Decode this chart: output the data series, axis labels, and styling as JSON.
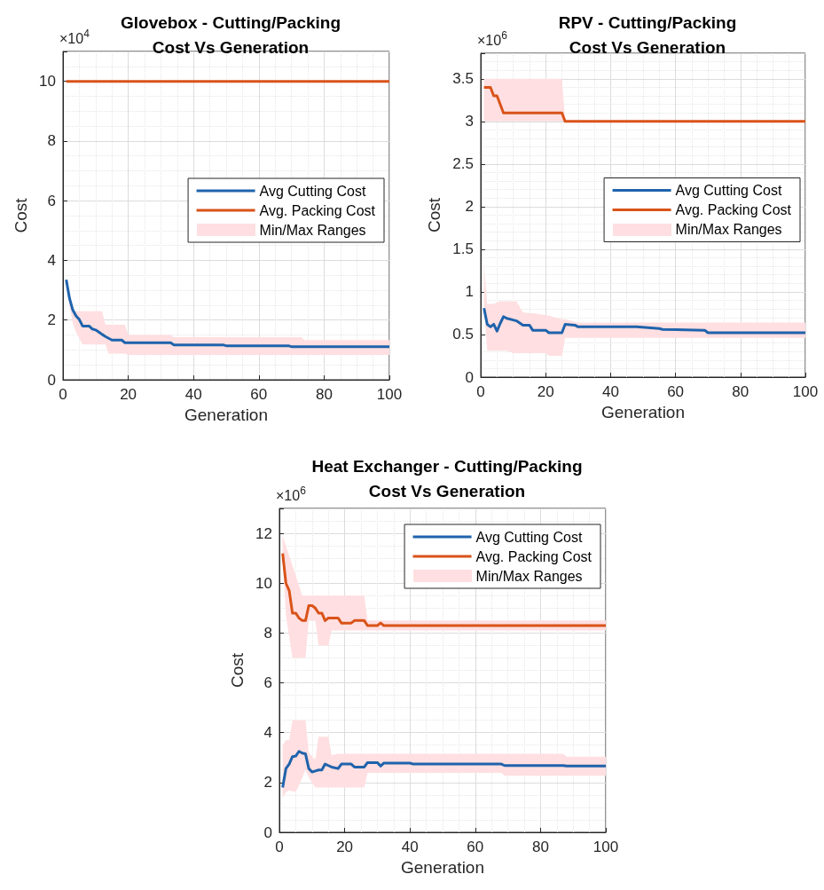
{
  "chart_data": [
    {
      "type": "line",
      "title": "Glovebox - Cutting/Packing\nCost Vs Generation",
      "xlabel": "Generation",
      "ylabel": "Cost",
      "annotations": [
        "×10$^{4}$",
        "Min/Max Ranges"
      ],
      "xlim": [
        0,
        100
      ],
      "xticks": [
        0,
        20,
        40,
        60,
        80,
        100
      ],
      "ylim": [
        0,
        11
      ],
      "yticks": [
        0,
        2,
        4,
        6,
        8,
        10
      ],
      "grid": true,
      "legend": "right",
      "series": [
        {
          "name": "Avg Cutting Cost",
          "color": "#1f63ac",
          "x": [
            1,
            2,
            3,
            4,
            5,
            6,
            8,
            9,
            10,
            11,
            12,
            13,
            14,
            15,
            18,
            19,
            20,
            33,
            34,
            49,
            50,
            69,
            70,
            73,
            74,
            100
          ],
          "values": [
            3.35,
            2.73,
            2.34,
            2.14,
            2.02,
            1.8,
            1.8,
            1.7,
            1.67,
            1.6,
            1.52,
            1.45,
            1.39,
            1.33,
            1.33,
            1.24,
            1.24,
            1.24,
            1.17,
            1.17,
            1.14,
            1.14,
            1.11,
            1.11,
            1.11,
            1.11
          ],
          "upper": [
            3.4,
            2.88,
            2.3,
            2.3,
            2.3,
            2.3,
            2.3,
            2.3,
            2.3,
            2.3,
            2.3,
            1.84,
            1.84,
            1.84,
            1.84,
            1.84,
            1.5,
            1.5,
            1.43,
            1.43,
            1.43,
            1.43,
            1.43,
            1.43,
            1.33,
            1.33
          ],
          "lower": [
            3.3,
            2.5,
            1.9,
            1.6,
            1.39,
            1.18,
            1.18,
            1.18,
            1.18,
            1.18,
            1.18,
            1.18,
            0.88,
            0.88,
            0.88,
            0.88,
            0.83,
            0.83,
            0.83,
            0.83,
            0.83,
            0.83,
            0.83,
            0.83,
            0.83,
            0.83
          ]
        },
        {
          "name": "Avg. Packing Cost",
          "color": "#d95319",
          "x": [
            1,
            100
          ],
          "values": [
            10,
            10
          ]
        }
      ]
    },
    {
      "type": "line",
      "title": "RPV - Cutting/Packing\nCost Vs Generation",
      "xlabel": "Generation",
      "ylabel": "Cost",
      "annotations": [
        "×10$^{6}$",
        "Min/Max Ranges"
      ],
      "xlim": [
        0,
        100
      ],
      "xticks": [
        0,
        20,
        40,
        60,
        80,
        100
      ],
      "ylim": [
        0,
        3.8
      ],
      "yticks": [
        0,
        0.5,
        1,
        1.5,
        2,
        2.5,
        3,
        3.5
      ],
      "grid": true,
      "legend": "right",
      "series": [
        {
          "name": "Avg Cutting Cost",
          "color": "#1f63ac",
          "x": [
            1,
            2,
            3,
            4,
            5,
            6,
            7,
            8,
            10,
            11,
            13,
            15,
            16,
            20,
            21,
            25,
            26,
            29,
            30,
            48,
            55,
            56,
            69,
            70,
            100
          ],
          "values": [
            0.81,
            0.62,
            0.59,
            0.62,
            0.54,
            0.63,
            0.71,
            0.69,
            0.67,
            0.66,
            0.61,
            0.61,
            0.55,
            0.55,
            0.52,
            0.52,
            0.62,
            0.61,
            0.59,
            0.59,
            0.57,
            0.56,
            0.55,
            0.52,
            0.52
          ],
          "upper": [
            1.32,
            0.86,
            0.86,
            0.86,
            0.88,
            0.89,
            0.89,
            0.89,
            0.89,
            0.89,
            0.76,
            0.75,
            0.75,
            0.73,
            0.72,
            0.68,
            0.68,
            0.65,
            0.64,
            0.64,
            0.64,
            0.64,
            0.64,
            0.64,
            0.64
          ],
          "lower": [
            0.8,
            0.31,
            0.31,
            0.31,
            0.31,
            0.31,
            0.31,
            0.31,
            0.28,
            0.28,
            0.28,
            0.28,
            0.28,
            0.28,
            0.25,
            0.25,
            0.46,
            0.46,
            0.46,
            0.46,
            0.46,
            0.46,
            0.46,
            0.46,
            0.46
          ]
        },
        {
          "name": "Avg. Packing Cost",
          "color": "#d95319",
          "x": [
            1,
            3,
            4,
            5,
            7,
            25,
            26,
            100
          ],
          "values": [
            3.4,
            3.4,
            3.3,
            3.3,
            3.1,
            3.1,
            3.0,
            3.0
          ],
          "upper": [
            3.5,
            3.5,
            3.5,
            3.5,
            3.5,
            3.5,
            3.0,
            3.0
          ],
          "lower": [
            3.0,
            3.0,
            3.0,
            3.0,
            3.0,
            3.0,
            3.0,
            3.0
          ]
        }
      ]
    },
    {
      "type": "line",
      "title": "Heat Exchanger - Cutting/Packing\nCost Vs Generation",
      "xlabel": "Generation",
      "ylabel": "Cost",
      "annotations": [
        "×10$^{6}$",
        "Min/Max Ranges"
      ],
      "xlim": [
        0,
        100
      ],
      "xticks": [
        0,
        20,
        40,
        60,
        80,
        100
      ],
      "ylim": [
        0,
        13
      ],
      "yticks": [
        0,
        2,
        4,
        6,
        8,
        10,
        12
      ],
      "grid": true,
      "legend": "top right",
      "series": [
        {
          "name": "Avg Cutting Cost",
          "color": "#1f63ac",
          "x": [
            1,
            2,
            3,
            4,
            5,
            6,
            7,
            8,
            9,
            10,
            11,
            12,
            13,
            14,
            15,
            16,
            18,
            19,
            22,
            23,
            26,
            27,
            30,
            31,
            32,
            40,
            41,
            68,
            69,
            87,
            88,
            100
          ],
          "values": [
            1.8,
            2.56,
            2.74,
            3.04,
            3.06,
            3.25,
            3.18,
            3.15,
            2.56,
            2.42,
            2.46,
            2.5,
            2.5,
            2.74,
            2.68,
            2.62,
            2.56,
            2.74,
            2.74,
            2.62,
            2.62,
            2.8,
            2.8,
            2.66,
            2.78,
            2.78,
            2.74,
            2.74,
            2.68,
            2.68,
            2.66,
            2.66
          ],
          "upper": [
            3.5,
            3.7,
            3.7,
            4.5,
            4.5,
            4.5,
            4.5,
            4.5,
            3.2,
            3.05,
            2.9,
            3.84,
            3.84,
            3.84,
            3.84,
            3.1,
            3.15,
            3.15,
            3.15,
            3.15,
            3.15,
            3.15,
            3.15,
            3.15,
            3.15,
            3.15,
            3.15,
            3.15,
            3.15,
            3.15,
            3.04,
            3.04
          ],
          "lower": [
            1.39,
            1.6,
            1.68,
            1.65,
            1.62,
            1.9,
            2.2,
            2.5,
            2.2,
            2.0,
            1.8,
            1.8,
            1.8,
            1.8,
            1.8,
            1.8,
            1.8,
            1.8,
            1.8,
            1.8,
            1.8,
            2.39,
            2.39,
            2.39,
            2.39,
            2.39,
            2.39,
            2.39,
            2.27,
            2.27,
            2.27,
            2.27
          ]
        },
        {
          "name": "Avg. Packing Cost",
          "color": "#d95319",
          "x": [
            1,
            2,
            3,
            4,
            5,
            6,
            7,
            8,
            9,
            10,
            11,
            12,
            13,
            14,
            15,
            16,
            18,
            19,
            22,
            23,
            26,
            27,
            30,
            31,
            32,
            100
          ],
          "values": [
            11.2,
            10.0,
            9.7,
            8.8,
            8.8,
            8.6,
            8.5,
            8.5,
            9.1,
            9.1,
            9.0,
            8.8,
            8.8,
            8.5,
            8.6,
            8.6,
            8.6,
            8.4,
            8.4,
            8.5,
            8.5,
            8.3,
            8.3,
            8.4,
            8.3,
            8.3
          ],
          "upper": [
            11.9,
            11.5,
            11.1,
            10.7,
            10.3,
            9.9,
            9.5,
            9.5,
            9.5,
            9.5,
            9.5,
            9.5,
            9.5,
            9.5,
            9.5,
            9.5,
            9.5,
            9.5,
            9.5,
            9.5,
            9.5,
            8.5,
            8.5,
            8.5,
            8.5,
            8.5
          ],
          "lower": [
            11.0,
            8.7,
            7.85,
            7.0,
            7.0,
            7.0,
            7.0,
            7.0,
            8.5,
            8.5,
            8.5,
            7.5,
            7.5,
            7.5,
            7.5,
            8.1,
            8.1,
            8.1,
            8.1,
            8.1,
            8.1,
            8.1,
            8.1,
            8.1,
            8.1,
            8.1
          ]
        }
      ]
    }
  ]
}
